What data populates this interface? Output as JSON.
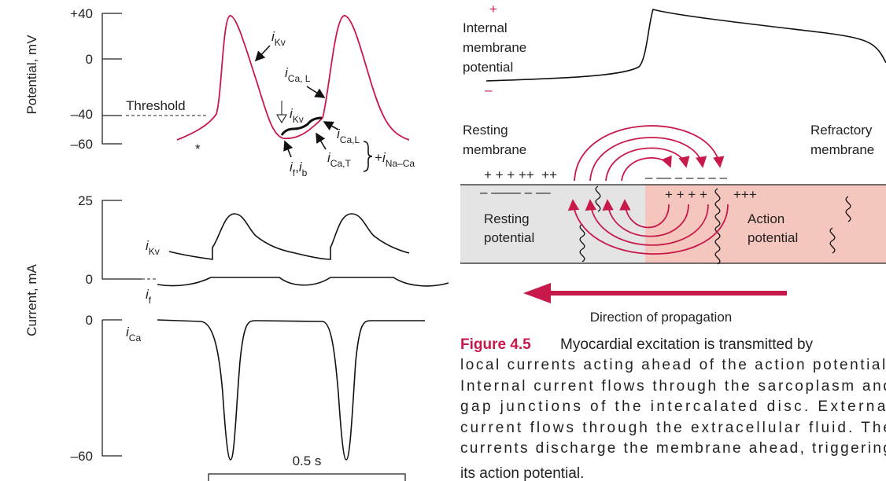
{
  "potential_panel": {
    "axis_label": "Potential, mV",
    "ticks": [
      "+40",
      "0",
      "–40",
      "–60"
    ],
    "threshold": "Threshold",
    "asterisk": "*",
    "currents": [
      {
        "symbol": "i",
        "sub": "Kv"
      },
      {
        "symbol": "i",
        "sub": "Ca, L"
      },
      {
        "symbol": "i",
        "sub": "Kv"
      },
      {
        "symbol": "i",
        "sub": "Ca,L"
      },
      {
        "symbol": "i",
        "sub": "Ca,T"
      }
    ],
    "if_ib": {
      "a": "i",
      "a_sub": "f",
      "sep": ",",
      "b": "i",
      "b_sub": "b"
    },
    "exchanger": {
      "prefix": "+",
      "symbol": "i",
      "sub": "Na–Ca"
    }
  },
  "current_panel": {
    "axis_label": "Current, mA",
    "kv_ticks": [
      "25",
      "0"
    ],
    "ca_ticks": [
      "0",
      "–60"
    ],
    "traces": [
      {
        "symbol": "i",
        "sub": "Kv"
      },
      {
        "symbol": "i",
        "sub": "f"
      },
      {
        "symbol": "i",
        "sub": "Ca"
      }
    ],
    "scale_bar": "0.5 s"
  },
  "membrane_diagram": {
    "plus": "+",
    "minus": "–",
    "internal_label": [
      "Internal",
      "membrane",
      "potential"
    ],
    "resting_membrane": [
      "Resting",
      "membrane"
    ],
    "refractory_membrane": [
      "Refractory",
      "membrane"
    ],
    "top_plus": "+ + + ++  ++",
    "top_minus": "– –– – – – – –",
    "bottom_minus": "– –––– – ––",
    "bottom_plus_1": "+ + + +",
    "bottom_plus_2": "+++",
    "resting_potential": [
      "Resting",
      "potential"
    ],
    "action_potential": [
      "Action",
      "potential"
    ],
    "direction": "Direction of propagation"
  },
  "caption": {
    "label": "Figure 4.5",
    "lines": [
      "Myocardial excitation is transmitted by",
      "local currents acting ahead of the action potential.",
      "Internal current flows through the sarcoplasm and",
      "gap junctions of the intercalated disc. External",
      "current flows through the extracellular fluid. The",
      "currents discharge the membrane ahead, triggering",
      "its action potential."
    ]
  }
}
